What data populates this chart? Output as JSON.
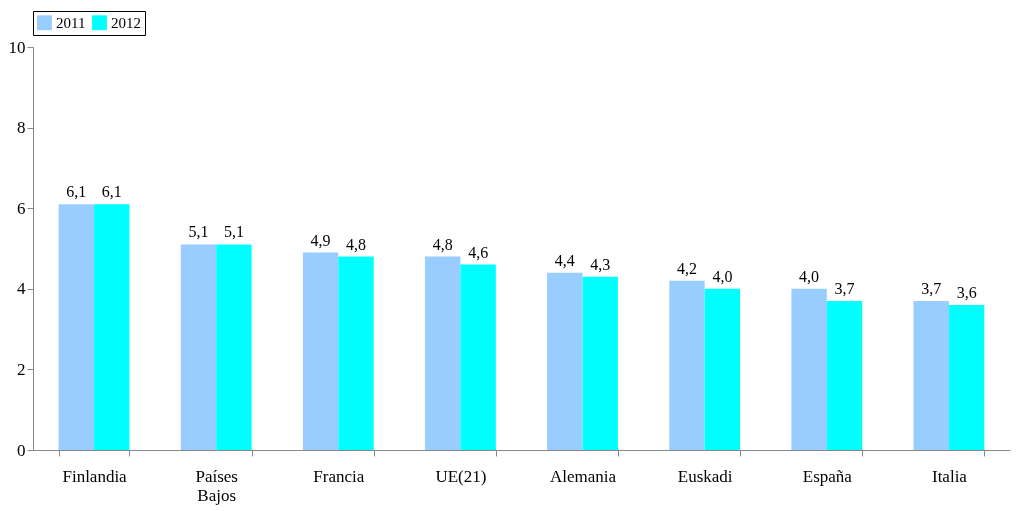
{
  "chart_data": {
    "type": "bar",
    "categories": [
      "Finlandia",
      "Países Bajos",
      "Francia",
      "UE(21)",
      "Alemania",
      "Euskadi",
      "España",
      "Italia"
    ],
    "series": [
      {
        "name": "2011",
        "color": "#99ccff",
        "values": [
          6.1,
          5.1,
          4.9,
          4.8,
          4.4,
          4.2,
          4.0,
          3.7
        ],
        "value_labels": [
          "6,1",
          "5,1",
          "4,9",
          "4,8",
          "4,4",
          "4,2",
          "4,0",
          "3,7"
        ]
      },
      {
        "name": "2012",
        "color": "#00ffff",
        "values": [
          6.1,
          5.1,
          4.8,
          4.6,
          4.3,
          4.0,
          3.7,
          3.6
        ],
        "value_labels": [
          "6,1",
          "5,1",
          "4,8",
          "4,6",
          "4,3",
          "4,0",
          "3,7",
          "3,6"
        ]
      }
    ],
    "ylim": [
      0,
      10
    ],
    "yticks": [
      0,
      2,
      4,
      6,
      8,
      10
    ],
    "grid": false,
    "legend": "top"
  }
}
